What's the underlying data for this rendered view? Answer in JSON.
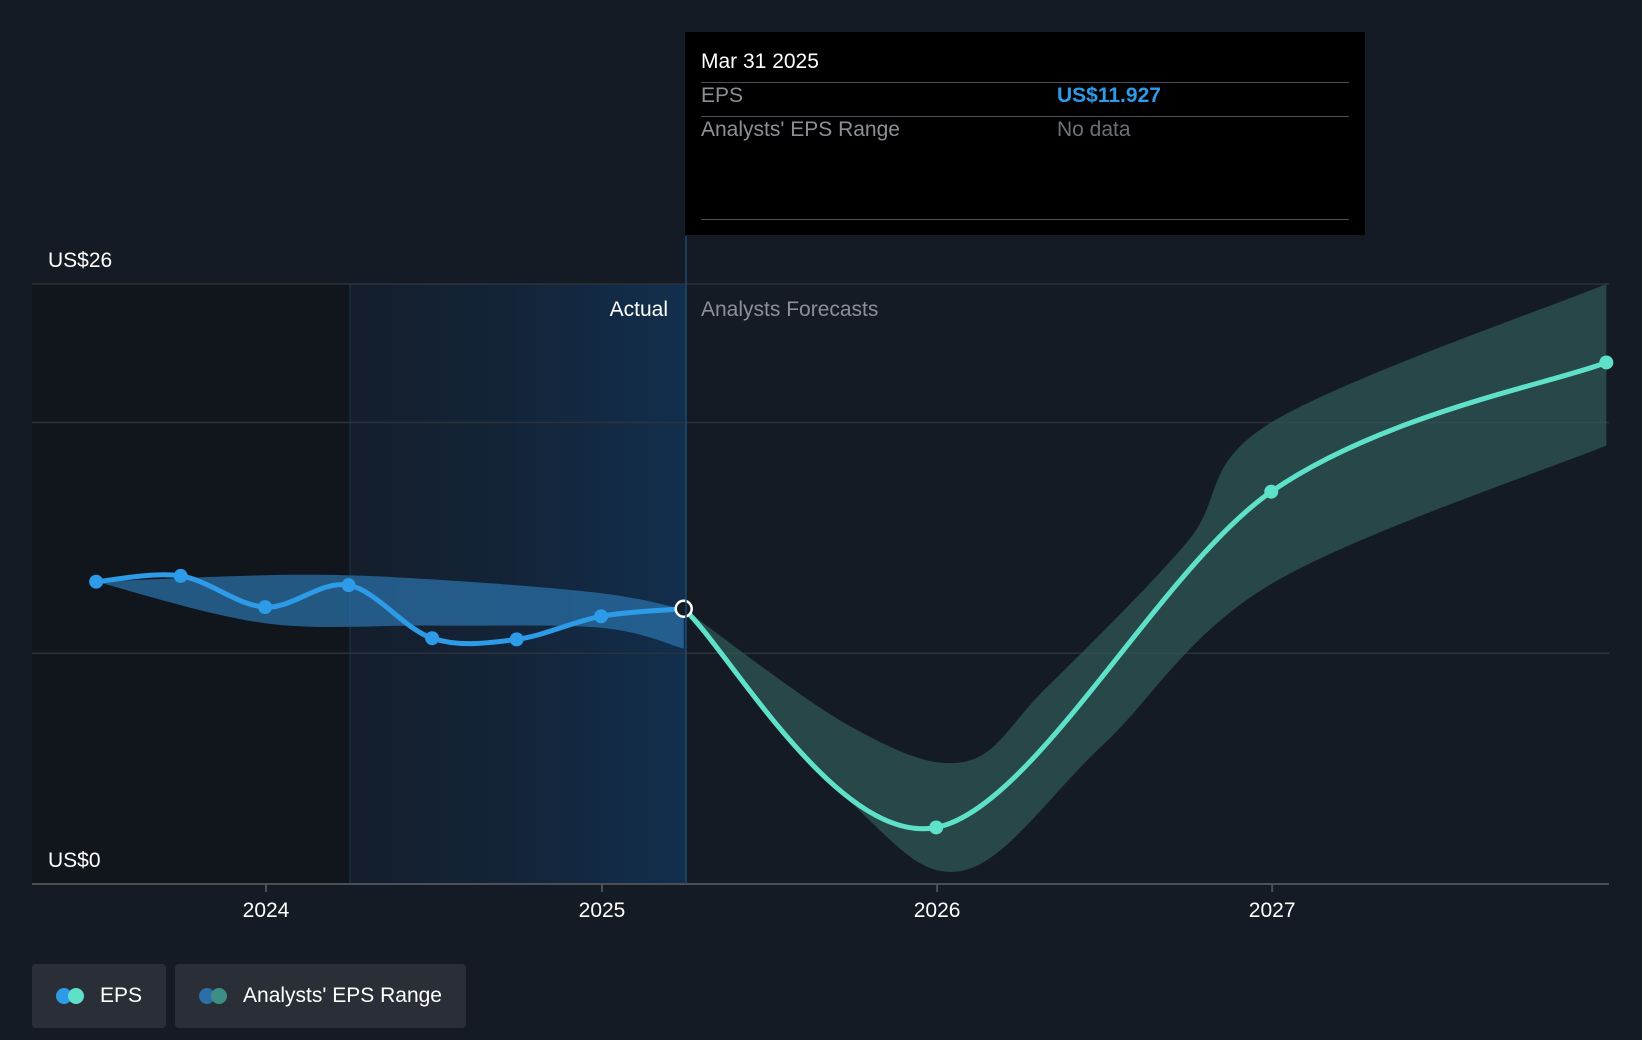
{
  "chart_data": {
    "type": "line",
    "y_axis": {
      "labels": [
        "US$26",
        "US$0"
      ],
      "ylim": [
        0,
        26
      ],
      "gridlines": [
        0,
        10,
        20,
        26
      ]
    },
    "x_axis": {
      "ticks": [
        "2024",
        "2025",
        "2026",
        "2027"
      ],
      "xlim": [
        "2023-07",
        "2027-12"
      ]
    },
    "regions": {
      "actual_label": "Actual",
      "forecast_label": "Analysts Forecasts",
      "divider": "2025-03-31"
    },
    "series": [
      {
        "name": "EPS",
        "kind": "actual",
        "color": "#2d9be8",
        "points": [
          {
            "x": "2023-06-30",
            "y": 13.1
          },
          {
            "x": "2023-09-30",
            "y": 13.35
          },
          {
            "x": "2023-12-31",
            "y": 12.0
          },
          {
            "x": "2024-03-31",
            "y": 12.95
          },
          {
            "x": "2024-06-30",
            "y": 10.65
          },
          {
            "x": "2024-09-30",
            "y": 10.6
          },
          {
            "x": "2024-12-31",
            "y": 11.6
          },
          {
            "x": "2025-03-31",
            "y": 11.927
          }
        ]
      },
      {
        "name": "EPS",
        "kind": "forecast",
        "color": "#5fe0c8",
        "points": [
          {
            "x": "2025-03-31",
            "y": 11.927
          },
          {
            "x": "2025-12-31",
            "y": 2.45
          },
          {
            "x": "2026-12-31",
            "y": 17.0
          },
          {
            "x": "2027-12-31",
            "y": 22.6
          }
        ]
      }
    ],
    "ranges": [
      {
        "name": "Analysts' EPS Range",
        "kind": "actual",
        "color": "#2a6fa6",
        "upper": [
          {
            "x": "2023-06-30",
            "y": 13.1
          },
          {
            "x": "2024-01-31",
            "y": 13.4
          },
          {
            "x": "2024-06-30",
            "y": 13.2
          },
          {
            "x": "2024-12-31",
            "y": 12.6
          },
          {
            "x": "2025-03-31",
            "y": 11.9
          }
        ],
        "lower": [
          {
            "x": "2023-06-30",
            "y": 13.1
          },
          {
            "x": "2023-12-31",
            "y": 11.3
          },
          {
            "x": "2024-06-30",
            "y": 11.2
          },
          {
            "x": "2024-12-31",
            "y": 11.1
          },
          {
            "x": "2025-03-31",
            "y": 10.2
          }
        ]
      },
      {
        "name": "Analysts' EPS Range",
        "kind": "forecast",
        "color": "#2f5a5a",
        "upper": [
          {
            "x": "2025-03-31",
            "y": 11.927
          },
          {
            "x": "2025-09-30",
            "y": 6.8
          },
          {
            "x": "2026-01-31",
            "y": 5.3
          },
          {
            "x": "2026-04-30",
            "y": 8.5
          },
          {
            "x": "2026-09-30",
            "y": 14.8
          },
          {
            "x": "2026-12-31",
            "y": 20.0
          },
          {
            "x": "2027-12-31",
            "y": 26.0
          }
        ],
        "lower": [
          {
            "x": "2025-03-31",
            "y": 11.927
          },
          {
            "x": "2025-09-30",
            "y": 3.5
          },
          {
            "x": "2026-01-31",
            "y": 0.6
          },
          {
            "x": "2026-06-30",
            "y": 6.0
          },
          {
            "x": "2026-12-31",
            "y": 13.0
          },
          {
            "x": "2027-12-31",
            "y": 19.0
          }
        ]
      }
    ]
  },
  "tooltip": {
    "date": "Mar 31 2025",
    "eps_label": "EPS",
    "eps_value": "US$11.927",
    "range_label": "Analysts' EPS Range",
    "range_value": "No data"
  },
  "legend": {
    "eps_label": "EPS",
    "range_label": "Analysts' EPS Range",
    "eps_colors": [
      "#2d9be8",
      "#5fe0c8"
    ],
    "range_colors": [
      "#2a6fa6",
      "#3d8f86"
    ]
  }
}
